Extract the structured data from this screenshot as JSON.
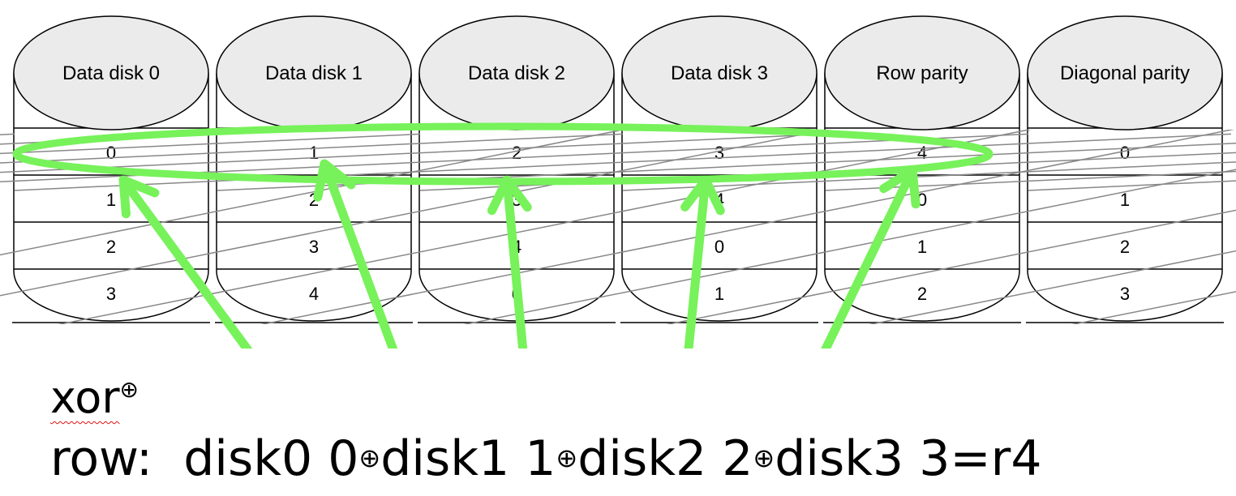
{
  "disks": [
    {
      "label": "Data disk 0",
      "cells": [
        "0",
        "1",
        "2",
        "3"
      ]
    },
    {
      "label": "Data disk 1",
      "cells": [
        "1",
        "2",
        "3",
        "4"
      ]
    },
    {
      "label": "Data disk 2",
      "cells": [
        "2",
        "3",
        "4",
        "0"
      ]
    },
    {
      "label": "Data disk 3",
      "cells": [
        "3",
        "4",
        "0",
        "1"
      ]
    },
    {
      "label": "Row parity",
      "cells": [
        "4",
        "0",
        "1",
        "2"
      ]
    },
    {
      "label": "Diagonal parity",
      "cells": [
        "0",
        "1",
        "2",
        "3"
      ]
    }
  ],
  "annotation": {
    "color": "#77f25a",
    "xor_word": "xor",
    "xor_symbol": "⊕",
    "row_line": {
      "prefix": "row:  ",
      "terms": [
        "disk0 0",
        "disk1 1",
        "disk2 2",
        "disk3 3=r4"
      ],
      "operator": "⊕"
    }
  }
}
